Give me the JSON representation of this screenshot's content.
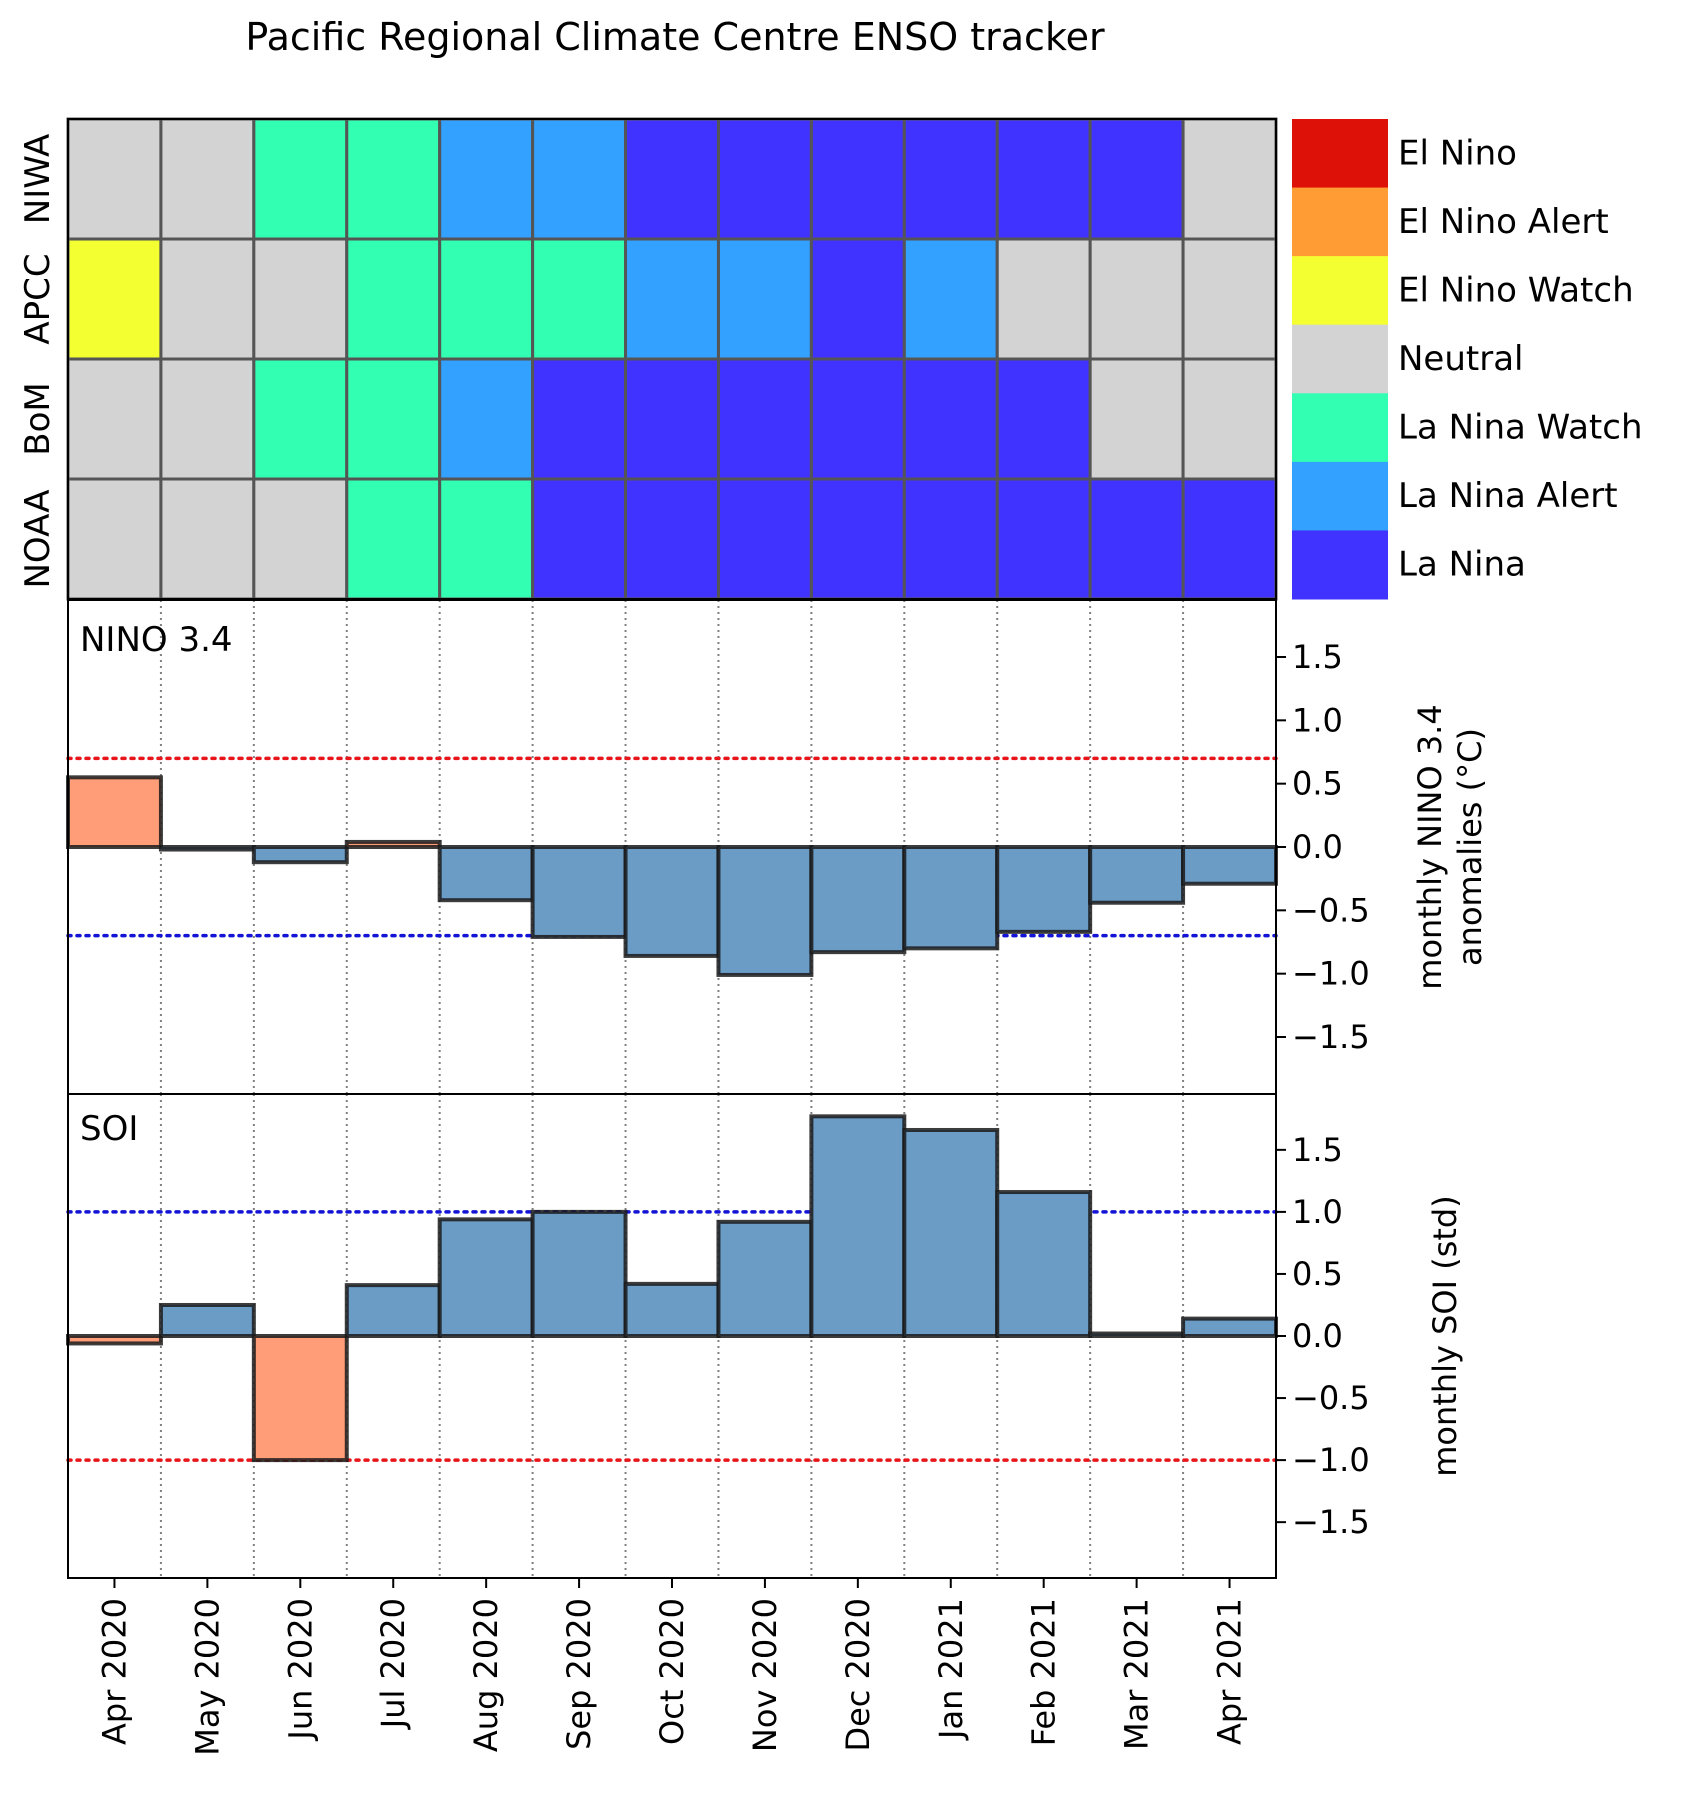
{
  "chart_data": [
    {
      "type": "heatmap",
      "title": "Pacific Regional Climate Centre ENSO tracker",
      "categories": [
        "Apr 2020",
        "May 2020",
        "Jun 2020",
        "Jul 2020",
        "Aug 2020",
        "Sep 2020",
        "Oct 2020",
        "Nov 2020",
        "Dec 2020",
        "Jan 2021",
        "Feb 2021",
        "Mar 2021",
        "Apr 2021"
      ],
      "rows": [
        "NIWA",
        "APCC",
        "BoM",
        "NOAA"
      ],
      "states": [
        "El Nino",
        "El Nino Alert",
        "El Nino Watch",
        "Neutral",
        "La Nina Watch",
        "La Nina Alert",
        "La Nina"
      ],
      "state_colors": [
        "#dd1107",
        "#ff9d34",
        "#f4ff31",
        "#d3d3d3",
        "#33ffb2",
        "#33a1ff",
        "#4133ff"
      ],
      "grid": [
        [
          "Neutral",
          "Neutral",
          "La Nina Watch",
          "La Nina Watch",
          "La Nina Alert",
          "La Nina Alert",
          "La Nina",
          "La Nina",
          "La Nina",
          "La Nina",
          "La Nina",
          "La Nina",
          "Neutral"
        ],
        [
          "El Nino Watch",
          "Neutral",
          "Neutral",
          "La Nina Watch",
          "La Nina Watch",
          "La Nina Watch",
          "La Nina Alert",
          "La Nina Alert",
          "La Nina",
          "La Nina Alert",
          "Neutral",
          "Neutral",
          "Neutral"
        ],
        [
          "Neutral",
          "Neutral",
          "La Nina Watch",
          "La Nina Watch",
          "La Nina Alert",
          "La Nina",
          "La Nina",
          "La Nina",
          "La Nina",
          "La Nina",
          "La Nina",
          "Neutral",
          "Neutral"
        ],
        [
          "Neutral",
          "Neutral",
          "Neutral",
          "La Nina Watch",
          "La Nina Watch",
          "La Nina",
          "La Nina",
          "La Nina",
          "La Nina",
          "La Nina",
          "La Nina",
          "La Nina",
          "La Nina"
        ]
      ],
      "legend_position": "right"
    },
    {
      "type": "bar",
      "panel_label": "NINO 3.4",
      "ylabel": "monthly NINO 3.4\nanomalies (°C)",
      "categories": [
        "Apr 2020",
        "May 2020",
        "Jun 2020",
        "Jul 2020",
        "Aug 2020",
        "Sep 2020",
        "Oct 2020",
        "Nov 2020",
        "Dec 2020",
        "Jan 2021",
        "Feb 2021",
        "Mar 2021",
        "Apr 2021"
      ],
      "values": [
        0.55,
        -0.02,
        -0.12,
        0.04,
        -0.42,
        -0.71,
        -0.86,
        -1.01,
        -0.83,
        -0.8,
        -0.67,
        -0.44,
        -0.29
      ],
      "ylim": [
        -1.95,
        1.95
      ],
      "yticks": [
        -1.5,
        -1.0,
        -0.5,
        0.0,
        0.5,
        1.0,
        1.5
      ],
      "ytick_labels": [
        "−1.5",
        "−1.0",
        "−0.5",
        "0.0",
        "0.5",
        "1.0",
        "1.5"
      ],
      "thresholds": {
        "upper": 0.7,
        "upper_color": "#e8161b",
        "lower": -0.7,
        "lower_color": "#1414d6"
      },
      "positive_color": "#ff9d79",
      "negative_color": "#6a9cc6",
      "grid": "vertical dotted"
    },
    {
      "type": "bar",
      "panel_label": "SOI",
      "ylabel": "monthly SOI (std)",
      "categories": [
        "Apr 2020",
        "May 2020",
        "Jun 2020",
        "Jul 2020",
        "Aug 2020",
        "Sep 2020",
        "Oct 2020",
        "Nov 2020",
        "Dec 2020",
        "Jan 2021",
        "Feb 2021",
        "Mar 2021",
        "Apr 2021"
      ],
      "values": [
        -0.06,
        0.25,
        -1.0,
        0.41,
        0.94,
        1.0,
        0.42,
        0.92,
        1.77,
        1.66,
        1.16,
        0.02,
        0.14
      ],
      "ylim": [
        -1.95,
        1.95
      ],
      "yticks": [
        -1.5,
        -1.0,
        -0.5,
        0.0,
        0.5,
        1.0,
        1.5
      ],
      "ytick_labels": [
        "−1.5",
        "−1.0",
        "−0.5",
        "0.0",
        "0.5",
        "1.0",
        "1.5"
      ],
      "thresholds": {
        "upper": 1.0,
        "upper_color": "#1414d6",
        "lower": -1.0,
        "lower_color": "#e8161b"
      },
      "positive_color": "#6a9cc6",
      "negative_color": "#ff9d79",
      "grid": "vertical dotted"
    }
  ]
}
